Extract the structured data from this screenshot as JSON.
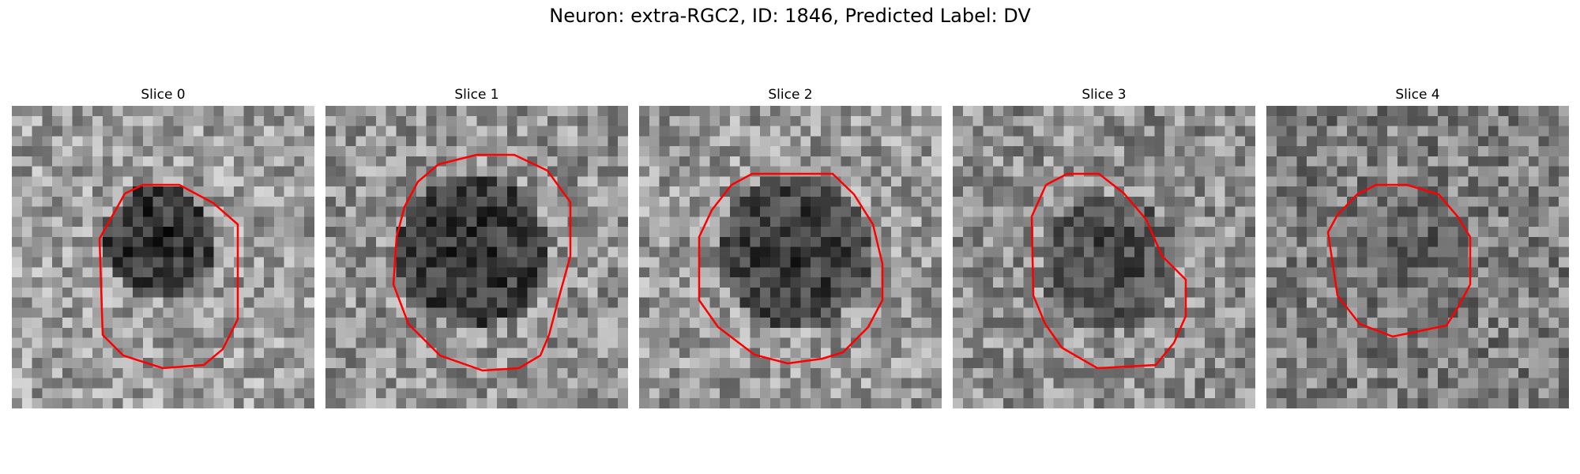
{
  "title": "Neuron: extra-RGC2, ID: 1846, Predicted Label: DV",
  "contour_color": "#ff0000",
  "panels": [
    {
      "label": "Slice 0",
      "seed": 11,
      "base": 0.62,
      "dark": 0.14
    },
    {
      "label": "Slice 1",
      "seed": 23,
      "base": 0.58,
      "dark": 0.16
    },
    {
      "label": "Slice 2",
      "seed": 37,
      "base": 0.6,
      "dark": 0.2
    },
    {
      "label": "Slice 3",
      "seed": 41,
      "base": 0.56,
      "dark": 0.26
    },
    {
      "label": "Slice 4",
      "seed": 53,
      "base": 0.5,
      "dark": 0.34
    }
  ]
}
